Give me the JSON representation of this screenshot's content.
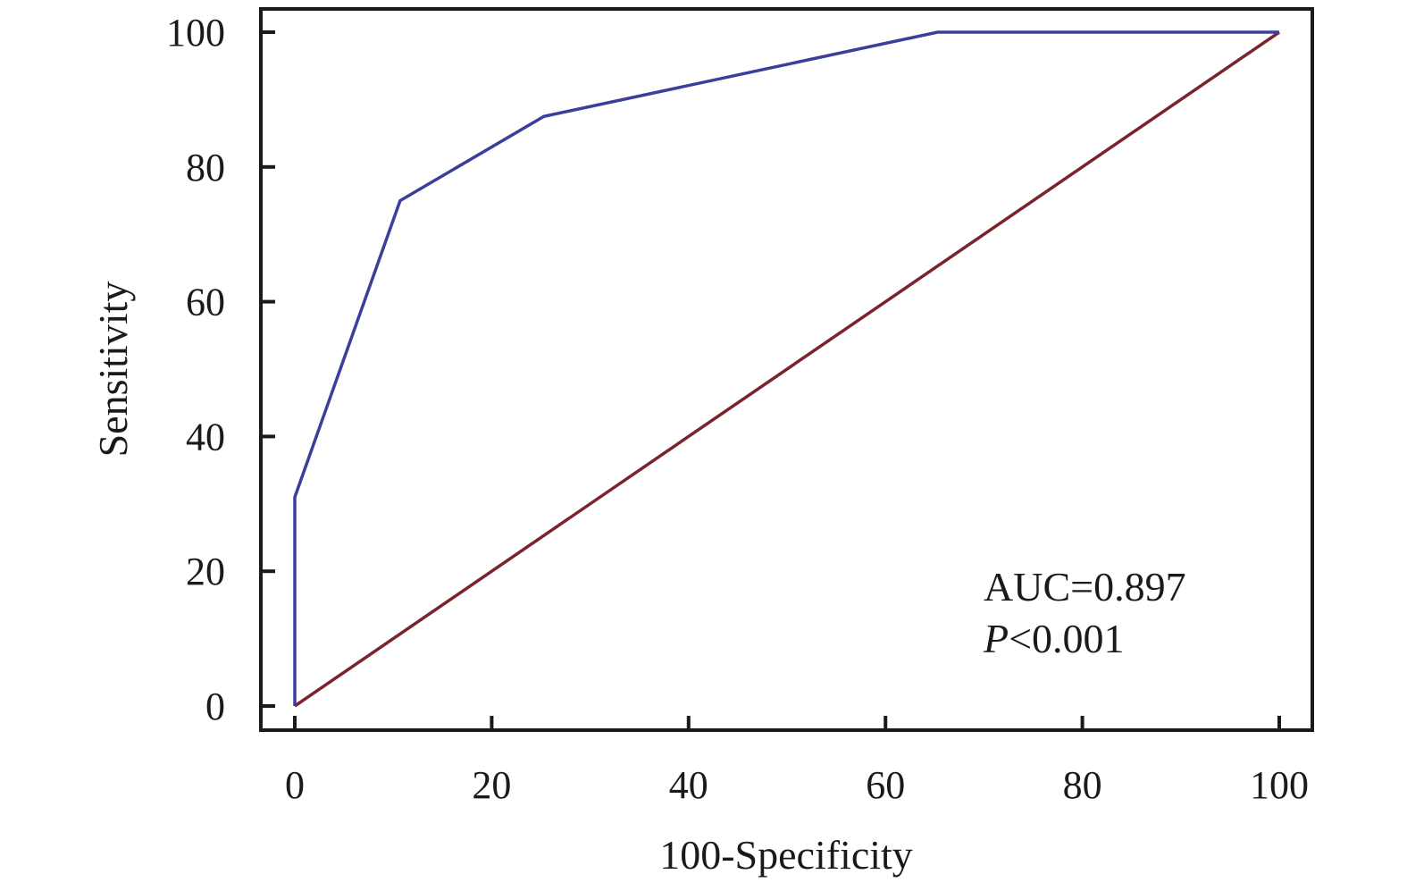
{
  "chart_data": {
    "type": "line",
    "title": "",
    "xlabel": "100-Specificity",
    "ylabel": "Sensitivity",
    "xlim": [
      0,
      100
    ],
    "ylim": [
      0,
      100
    ],
    "x_ticks": [
      "0",
      "20",
      "40",
      "60",
      "80",
      "100"
    ],
    "y_ticks": [
      "0",
      "20",
      "40",
      "60",
      "80",
      "100"
    ],
    "grid": false,
    "legend": "none",
    "series": [
      {
        "color": "#3b3f9a",
        "x": [
          0,
          0,
          10.7,
          25.3,
          65.3,
          100
        ],
        "y": [
          0,
          31,
          75,
          87.5,
          100,
          100
        ]
      },
      {
        "color": "#7a2430",
        "x": [
          0,
          100
        ],
        "y": [
          0,
          100
        ]
      }
    ],
    "annotations": {
      "auc": "AUC=0.897",
      "p_label": "P",
      "p_value": "<0.001"
    }
  }
}
